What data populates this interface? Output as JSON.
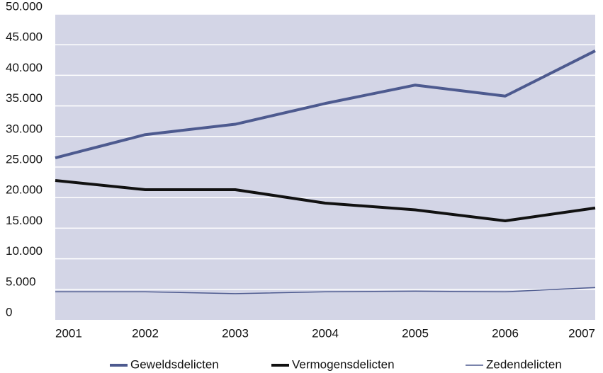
{
  "chart_data": {
    "type": "line",
    "categories": [
      "2001",
      "2002",
      "2003",
      "2004",
      "2005",
      "2006",
      "2007"
    ],
    "series": [
      {
        "name": "Geweldsdelicten",
        "color": "#4d5a8f",
        "line_width": 4,
        "values": [
          26500,
          30300,
          32000,
          35400,
          38400,
          36600,
          44000
        ]
      },
      {
        "name": "Vermogensdelicten",
        "color": "#111111",
        "line_width": 4,
        "values": [
          22800,
          21300,
          21300,
          19100,
          18000,
          16200,
          18300
        ]
      },
      {
        "name": "Zedendelicten",
        "color": "#4d5a8f",
        "line_width": 1.5,
        "values": [
          4600,
          4600,
          4300,
          4600,
          4700,
          4600,
          5300
        ]
      }
    ],
    "ylim": [
      0,
      50000
    ],
    "yticks": [
      0,
      {
        "value": 5000,
        "label": "5.000"
      },
      {
        "value": 10000,
        "label": "10.000"
      },
      {
        "value": 15000,
        "label": "15.000"
      },
      {
        "value": 20000,
        "label": "20.000"
      },
      {
        "value": 25000,
        "label": "25.000"
      },
      {
        "value": 30000,
        "label": "30.000"
      },
      {
        "value": 35000,
        "label": "35.000"
      },
      {
        "value": 40000,
        "label": "40.000"
      },
      {
        "value": 45000,
        "label": "45.000"
      },
      {
        "value": 50000,
        "label": "50.000"
      }
    ],
    "grid": true,
    "legend": "bottom"
  }
}
